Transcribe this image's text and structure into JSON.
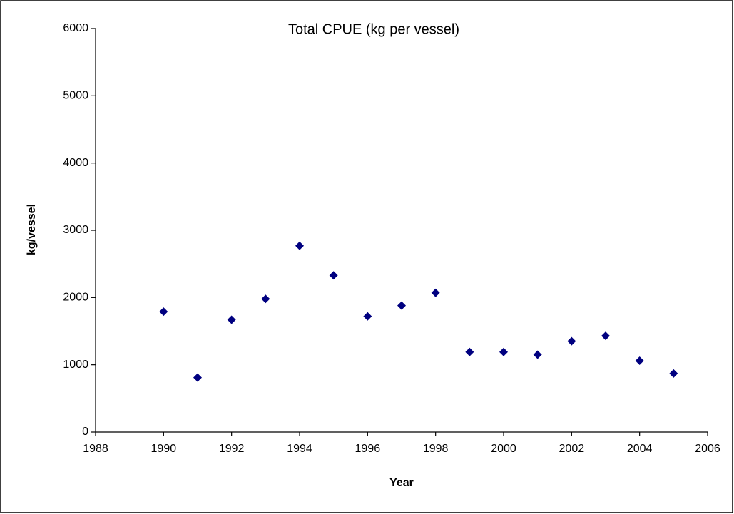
{
  "chart_data": {
    "type": "scatter",
    "title": "Total CPUE (kg per vessel)",
    "x_label": "Year",
    "y_label": "kg/vessel",
    "series": [
      {
        "name": "CPUE",
        "color": "#000080",
        "x": [
          1990,
          1991,
          1992,
          1993,
          1994,
          1995,
          1996,
          1997,
          1998,
          1999,
          2000,
          2001,
          2002,
          2003,
          2004,
          2005
        ],
        "values": [
          1790,
          810,
          1670,
          1980,
          2770,
          2330,
          1720,
          1880,
          2070,
          1190,
          1190,
          1150,
          1350,
          1430,
          1060,
          870
        ]
      }
    ],
    "xlim": [
      1988,
      2006
    ],
    "xticks": [
      1988,
      1990,
      1992,
      1994,
      1996,
      1998,
      2000,
      2002,
      2004,
      2006
    ],
    "ylim": [
      0,
      6000
    ],
    "yticks": [
      0,
      1000,
      2000,
      3000,
      4000,
      5000,
      6000
    ],
    "grid": false
  }
}
